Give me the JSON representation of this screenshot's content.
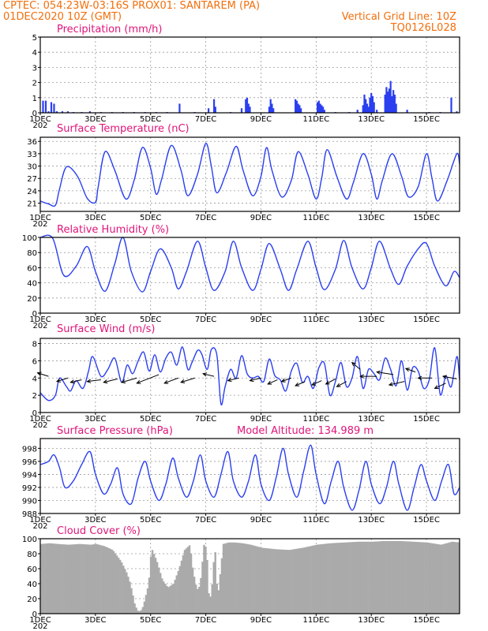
{
  "header": {
    "line1_left": "CPTEC:   054:23W-03:16S   PROX01: SANTAREM (PA)",
    "line2_left": "01DEC2020 10Z (GMT)",
    "line2_right": "Vertical Grid Line: 10Z",
    "line3_right": "TQ0126L028"
  },
  "x_axis": {
    "ticks": [
      {
        "day": 0,
        "label": "1DEC"
      },
      {
        "day": 2,
        "label": "3DEC"
      },
      {
        "day": 4,
        "label": "5DEC"
      },
      {
        "day": 6,
        "label": "7DEC"
      },
      {
        "day": 8,
        "label": "9DEC"
      },
      {
        "day": 10,
        "label": "11DEC"
      },
      {
        "day": 12,
        "label": "13DEC"
      },
      {
        "day": 14,
        "label": "15DEC"
      }
    ],
    "xlim": [
      0,
      15.2
    ],
    "year_fragment": "202"
  },
  "colors": {
    "header": "#f26f0c",
    "panel_title": "#e0157a",
    "series": "#2b3ff0",
    "cloud": "#aaaaaa"
  },
  "chart_data": [
    {
      "id": "precip",
      "type": "bar",
      "title": "Precipitation (mm/h)",
      "ylim": [
        0,
        5
      ],
      "yticks": [
        0,
        1,
        2,
        3,
        4,
        5
      ],
      "grid": true,
      "x": [
        0.1,
        0.2,
        0.3,
        0.4,
        0.5,
        0.6,
        0.8,
        1.0,
        1.2,
        1.5,
        1.8,
        2.2,
        2.6,
        3.0,
        3.4,
        3.8,
        4.2,
        4.6,
        5.05,
        5.6,
        6.1,
        6.3,
        6.35,
        6.9,
        7.3,
        7.45,
        7.5,
        7.55,
        7.6,
        8.3,
        8.35,
        8.4,
        8.45,
        9.25,
        9.3,
        9.35,
        9.4,
        9.45,
        10.05,
        10.1,
        10.15,
        10.2,
        10.25,
        10.3,
        10.7,
        11.2,
        11.5,
        11.7,
        11.75,
        11.8,
        11.85,
        11.9,
        11.95,
        12.0,
        12.05,
        12.1,
        12.2,
        12.5,
        12.55,
        12.6,
        12.65,
        12.7,
        12.75,
        12.8,
        12.85,
        12.9,
        13.3,
        14.1,
        14.5,
        14.9,
        15.1
      ],
      "values": [
        0.8,
        0.8,
        0.1,
        0.7,
        0.6,
        0.1,
        0.1,
        0.1,
        0.05,
        0.05,
        0.1,
        0.05,
        0.05,
        0.05,
        0.05,
        0.05,
        0.05,
        0.05,
        0.6,
        0.05,
        0.3,
        0.9,
        0.4,
        0.05,
        0.3,
        0.9,
        1.0,
        0.6,
        0.4,
        0.4,
        0.9,
        0.6,
        0.3,
        0.9,
        0.8,
        0.6,
        0.5,
        0.3,
        0.7,
        0.8,
        0.6,
        0.5,
        0.4,
        0.2,
        0.05,
        0.05,
        0.2,
        0.5,
        1.2,
        0.9,
        0.6,
        0.4,
        1.0,
        1.3,
        1.1,
        0.7,
        0.2,
        1.2,
        1.7,
        1.4,
        1.6,
        2.1,
        1.1,
        1.5,
        1.2,
        0.6,
        0.2,
        0.05,
        0.05,
        1.0,
        0.1
      ]
    },
    {
      "id": "temperature",
      "type": "line",
      "title": "Surface Temperature (nC)",
      "ylim": [
        19,
        37
      ],
      "yticks": [
        21,
        24,
        27,
        30,
        33,
        36
      ],
      "grid": true,
      "x": [
        0,
        0.3,
        0.55,
        0.7,
        0.95,
        1.35,
        1.7,
        2.0,
        2.1,
        2.35,
        2.7,
        3.1,
        3.4,
        3.7,
        4.0,
        4.2,
        4.4,
        4.75,
        5.1,
        5.35,
        5.7,
        6.0,
        6.2,
        6.4,
        6.75,
        7.1,
        7.35,
        7.7,
        8.0,
        8.2,
        8.4,
        8.75,
        9.1,
        9.35,
        9.7,
        10.0,
        10.2,
        10.4,
        10.75,
        11.1,
        11.35,
        11.7,
        12.0,
        12.2,
        12.4,
        12.75,
        13.1,
        13.35,
        13.7,
        14.0,
        14.2,
        14.4,
        14.75,
        15.1,
        15.2
      ],
      "values": [
        21.5,
        20.8,
        20.5,
        24.5,
        29.8,
        27.5,
        22.2,
        21.2,
        25.0,
        33.5,
        29.0,
        22.0,
        26.5,
        34.5,
        29.5,
        23.2,
        26.8,
        35.0,
        29.0,
        22.8,
        28.0,
        35.5,
        30.0,
        23.5,
        28.5,
        34.8,
        29.0,
        22.8,
        27.5,
        34.5,
        29.0,
        22.5,
        26.5,
        33.5,
        28.0,
        22.0,
        27.0,
        34.0,
        27.5,
        22.0,
        26.0,
        33.0,
        28.0,
        22.0,
        26.5,
        33.0,
        27.5,
        22.5,
        25.0,
        33.0,
        27.0,
        21.5,
        26.5,
        33.0,
        30.5
      ]
    },
    {
      "id": "humidity",
      "type": "line",
      "title": "Relative Humidity (%)",
      "ylim": [
        0,
        100
      ],
      "yticks": [
        0,
        20,
        40,
        60,
        80,
        100
      ],
      "grid": true,
      "x": [
        0,
        0.45,
        0.85,
        1.3,
        1.7,
        2.0,
        2.35,
        2.7,
        3.0,
        3.3,
        3.7,
        4.0,
        4.35,
        4.75,
        5.0,
        5.3,
        5.7,
        6.0,
        6.3,
        6.7,
        7.0,
        7.3,
        7.7,
        8.0,
        8.3,
        8.7,
        9.0,
        9.3,
        9.7,
        10.0,
        10.3,
        10.7,
        11.0,
        11.3,
        11.7,
        12.0,
        12.3,
        12.7,
        13.0,
        13.3,
        13.7,
        14.0,
        14.3,
        14.7,
        15.0,
        15.2
      ],
      "values": [
        100,
        99,
        50,
        62,
        88,
        55,
        29,
        65,
        100,
        55,
        28,
        55,
        85,
        60,
        32,
        55,
        95,
        60,
        30,
        55,
        95,
        60,
        30,
        58,
        92,
        58,
        30,
        58,
        95,
        60,
        31,
        58,
        96,
        60,
        32,
        60,
        95,
        58,
        38,
        62,
        85,
        92,
        62,
        36,
        55,
        47
      ]
    },
    {
      "id": "wind",
      "type": "line",
      "title": "Surface Wind (m/s)",
      "ylim": [
        0,
        8.6
      ],
      "yticks": [
        0,
        2,
        4,
        6,
        8
      ],
      "grid": true,
      "x": [
        0,
        0.3,
        0.55,
        0.7,
        0.95,
        1.1,
        1.3,
        1.55,
        1.75,
        1.9,
        2.2,
        2.45,
        2.7,
        2.95,
        3.15,
        3.35,
        3.55,
        3.75,
        3.95,
        4.15,
        4.35,
        4.55,
        4.75,
        4.95,
        5.15,
        5.35,
        5.5,
        5.7,
        5.85,
        6.05,
        6.2,
        6.4,
        6.55,
        6.7,
        6.9,
        7.1,
        7.3,
        7.5,
        7.7,
        7.9,
        8.1,
        8.3,
        8.5,
        8.7,
        8.9,
        9.1,
        9.3,
        9.5,
        9.7,
        9.9,
        10.1,
        10.3,
        10.5,
        10.7,
        10.9,
        11.1,
        11.3,
        11.5,
        11.7,
        11.9,
        12.1,
        12.3,
        12.5,
        12.7,
        12.9,
        13.1,
        13.3,
        13.5,
        13.7,
        13.9,
        14.1,
        14.3,
        14.5,
        14.7,
        14.9,
        15.1,
        15.2
      ],
      "values": [
        2.3,
        1.4,
        2.0,
        4.0,
        3.0,
        2.5,
        3.7,
        2.8,
        4.8,
        6.5,
        4.2,
        5.0,
        6.3,
        3.5,
        5.5,
        4.5,
        6.0,
        7.0,
        4.8,
        6.7,
        4.7,
        6.3,
        7.0,
        5.5,
        7.6,
        5.0,
        5.8,
        7.2,
        6.8,
        5.0,
        7.3,
        6.7,
        1.0,
        3.0,
        5.0,
        4.0,
        6.6,
        4.5,
        4.0,
        4.2,
        3.6,
        6.2,
        4.3,
        3.8,
        2.5,
        4.8,
        5.7,
        3.5,
        4.2,
        2.8,
        5.2,
        5.7,
        2.0,
        3.6,
        5.8,
        3.0,
        4.0,
        6.5,
        2.8,
        5.0,
        4.5,
        3.8,
        6.3,
        5.0,
        3.1,
        6.0,
        2.6,
        5.2,
        4.8,
        2.8,
        3.8,
        7.5,
        2.1,
        4.2,
        3.0,
        6.5,
        3.8
      ],
      "vectors": [
        {
          "x": 0.3,
          "y": 4.2,
          "dx": -0.4,
          "dy": 0.4
        },
        {
          "x": 1.0,
          "y": 4.0,
          "dx": -0.4,
          "dy": -0.4
        },
        {
          "x": 1.5,
          "y": 3.8,
          "dx": -0.4,
          "dy": -0.3
        },
        {
          "x": 2.2,
          "y": 3.8,
          "dx": -0.5,
          "dy": -0.2
        },
        {
          "x": 2.8,
          "y": 3.9,
          "dx": -0.5,
          "dy": -0.4
        },
        {
          "x": 3.5,
          "y": 4.0,
          "dx": -0.55,
          "dy": -0.5
        },
        {
          "x": 4.3,
          "y": 4.4,
          "dx": -0.8,
          "dy": -1.0
        },
        {
          "x": 5.0,
          "y": 4.0,
          "dx": -0.5,
          "dy": -0.6
        },
        {
          "x": 5.6,
          "y": 4.0,
          "dx": -0.5,
          "dy": -0.5
        },
        {
          "x": 6.3,
          "y": 4.2,
          "dx": -0.4,
          "dy": 0.3
        },
        {
          "x": 7.2,
          "y": 4.0,
          "dx": -0.4,
          "dy": -0.3
        },
        {
          "x": 8.0,
          "y": 4.0,
          "dx": -0.4,
          "dy": -0.3
        },
        {
          "x": 8.6,
          "y": 3.8,
          "dx": -0.35,
          "dy": -0.5
        },
        {
          "x": 9.1,
          "y": 4.0,
          "dx": -0.35,
          "dy": -0.4
        },
        {
          "x": 9.6,
          "y": 3.6,
          "dx": -0.35,
          "dy": -0.5
        },
        {
          "x": 10.2,
          "y": 3.7,
          "dx": -0.35,
          "dy": -0.5
        },
        {
          "x": 10.7,
          "y": 3.9,
          "dx": -0.35,
          "dy": -0.6
        },
        {
          "x": 11.1,
          "y": 3.6,
          "dx": -0.35,
          "dy": -0.6
        },
        {
          "x": 11.6,
          "y": 5.0,
          "dx": -0.3,
          "dy": 0.8
        },
        {
          "x": 12.2,
          "y": 4.2,
          "dx": -0.6,
          "dy": 0.0
        },
        {
          "x": 12.8,
          "y": 4.4,
          "dx": -0.6,
          "dy": 0.3
        },
        {
          "x": 13.2,
          "y": 3.6,
          "dx": -0.55,
          "dy": -0.4
        },
        {
          "x": 13.6,
          "y": 4.7,
          "dx": -0.35,
          "dy": 0.4
        },
        {
          "x": 14.2,
          "y": 4.0,
          "dx": -0.5,
          "dy": 0.0
        },
        {
          "x": 14.7,
          "y": 3.4,
          "dx": -0.4,
          "dy": -0.6
        },
        {
          "x": 15.1,
          "y": 3.9,
          "dx": -0.5,
          "dy": 0.3
        }
      ]
    },
    {
      "id": "pressure",
      "type": "line",
      "title": "Surface Pressure (hPa)",
      "subtitle": "Model Altitude: 134.989 m",
      "ylim": [
        988,
        999.5
      ],
      "yticks": [
        988,
        990,
        992,
        994,
        996,
        998
      ],
      "grid": true,
      "x": [
        0,
        0.3,
        0.5,
        0.7,
        0.9,
        1.2,
        1.5,
        1.8,
        2.0,
        2.3,
        2.55,
        2.8,
        3.0,
        3.3,
        3.55,
        3.8,
        4.0,
        4.3,
        4.55,
        4.8,
        5.0,
        5.3,
        5.55,
        5.8,
        6.0,
        6.3,
        6.55,
        6.8,
        7.0,
        7.3,
        7.55,
        7.8,
        8.0,
        8.3,
        8.55,
        8.8,
        9.0,
        9.3,
        9.55,
        9.8,
        10.0,
        10.3,
        10.55,
        10.8,
        11.0,
        11.3,
        11.55,
        11.8,
        12.0,
        12.3,
        12.55,
        12.8,
        13.0,
        13.3,
        13.55,
        13.8,
        14.0,
        14.3,
        14.55,
        14.8,
        15.0,
        15.2
      ],
      "values": [
        995.5,
        996.0,
        997.0,
        995.0,
        992.0,
        993.0,
        995.5,
        997.5,
        994.0,
        991.0,
        992.5,
        995.0,
        991.0,
        989.5,
        993.5,
        996.0,
        993.0,
        990.0,
        992.5,
        996.5,
        993.5,
        990.5,
        993.0,
        997.0,
        993.0,
        990.5,
        994.0,
        997.5,
        993.0,
        990.5,
        993.0,
        997.0,
        992.5,
        990.0,
        993.5,
        998.0,
        994.0,
        990.5,
        994.5,
        998.5,
        994.0,
        989.5,
        993.0,
        996.0,
        992.0,
        988.5,
        991.5,
        996.0,
        992.5,
        989.5,
        992.0,
        996.0,
        992.5,
        988.5,
        992.0,
        995.5,
        993.0,
        990.0,
        993.0,
        995.5,
        991.0,
        992.0
      ]
    },
    {
      "id": "cloud",
      "type": "area",
      "title": "Cloud Cover (%)",
      "ylim": [
        0,
        100
      ],
      "yticks": [
        0,
        20,
        40,
        60,
        80,
        100
      ],
      "grid": true,
      "x": [
        0,
        0.3,
        0.6,
        1.0,
        1.4,
        1.8,
        2.0,
        2.3,
        2.6,
        2.9,
        3.1,
        3.2,
        3.3,
        3.4,
        3.5,
        3.6,
        3.7,
        3.8,
        3.9,
        4.0,
        4.2,
        4.4,
        4.6,
        4.8,
        5.0,
        5.2,
        5.4,
        5.5,
        5.6,
        5.7,
        5.8,
        5.9,
        6.0,
        6.1,
        6.2,
        6.3,
        6.4,
        6.6,
        6.8,
        7.0,
        7.3,
        7.6,
        8.0,
        8.5,
        9.0,
        9.5,
        10.0,
        10.5,
        11.0,
        11.5,
        12.0,
        12.5,
        13.0,
        13.5,
        14.0,
        14.5,
        14.9,
        15.2
      ],
      "values": [
        93,
        94,
        93,
        92,
        93,
        92,
        93,
        90,
        85,
        70,
        55,
        45,
        30,
        12,
        4,
        3,
        10,
        25,
        40,
        88,
        70,
        45,
        35,
        40,
        60,
        85,
        92,
        60,
        40,
        30,
        50,
        92,
        88,
        12,
        40,
        92,
        20,
        93,
        95,
        95,
        94,
        92,
        88,
        86,
        85,
        88,
        92,
        94,
        95,
        96,
        96,
        97,
        97,
        96,
        95,
        92,
        96,
        95
      ]
    }
  ]
}
